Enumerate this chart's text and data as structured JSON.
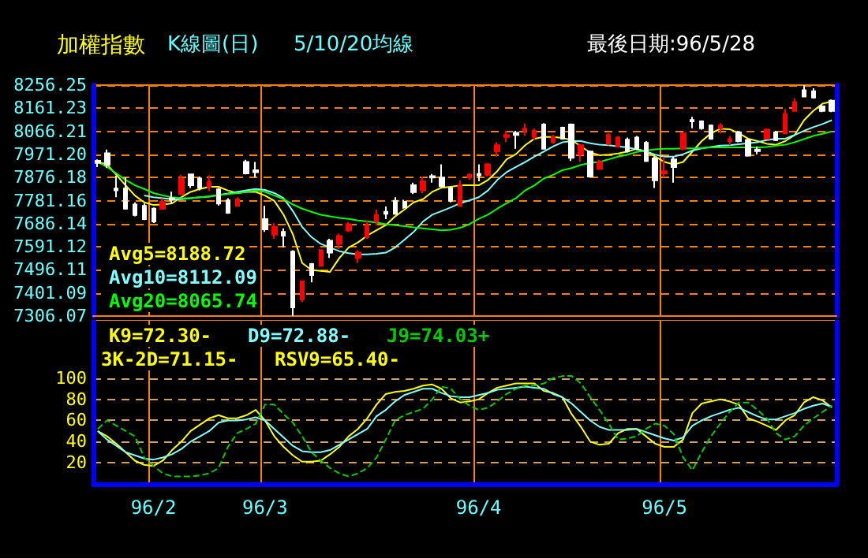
{
  "chart_data": [
    {
      "type": "candlestick",
      "title": "加權指數",
      "subtitle": "K線圖(日)",
      "annotations": [
        "5/10/20均線",
        "最後日期:96/5/28"
      ],
      "categories": [
        null,
        null,
        null,
        null,
        null,
        null,
        null,
        null,
        null,
        null,
        null,
        null,
        null,
        null,
        null,
        null,
        null,
        null,
        null,
        null,
        null,
        null,
        null,
        null,
        null,
        null,
        null,
        null,
        null,
        null,
        null,
        null,
        null,
        null,
        null,
        null,
        null,
        null,
        null,
        null,
        null,
        null,
        null,
        null,
        null,
        null,
        null,
        null,
        null,
        null,
        null,
        null,
        null,
        null,
        null,
        null,
        null,
        null,
        null,
        null,
        null,
        null,
        null,
        null,
        null,
        null,
        null,
        null,
        null,
        null,
        null,
        null,
        null,
        null,
        null,
        null,
        null,
        null,
        null,
        null
      ],
      "ohlc": [
        [
          7945,
          7951,
          7919,
          7936
        ],
        [
          7976,
          7991,
          7915,
          7929
        ],
        [
          7831,
          7883,
          7795,
          7823
        ],
        [
          7831,
          7876,
          7744,
          7748
        ],
        [
          7765,
          7774,
          7716,
          7722
        ],
        [
          7759,
          7769,
          7701,
          7705
        ],
        [
          7748,
          7753,
          7689,
          7695
        ],
        [
          7748,
          7791,
          7744,
          7776
        ],
        [
          7791,
          7818,
          7769,
          7784
        ],
        [
          7808,
          7887,
          7804,
          7872
        ],
        [
          7889,
          7891,
          7833,
          7844
        ],
        [
          7872,
          7880,
          7823,
          7833
        ],
        [
          7838,
          7885,
          7821,
          7859
        ],
        [
          7827,
          7833,
          7761,
          7769
        ],
        [
          7782,
          7791,
          7727,
          7731
        ],
        [
          7759,
          7795,
          7757,
          7786
        ],
        [
          7940,
          7949,
          7889,
          7893
        ],
        [
          7906,
          7940,
          7876,
          7898
        ],
        [
          7705,
          7759,
          7652,
          7663
        ],
        [
          7641,
          7688,
          7624,
          7673
        ],
        [
          7652,
          7667,
          7588,
          7637
        ],
        [
          7571,
          7577,
          7306.07,
          7342
        ],
        [
          7374,
          7453,
          7364,
          7449
        ],
        [
          7520,
          7524,
          7445,
          7475
        ],
        [
          7513,
          7582,
          7509,
          7577
        ],
        [
          7616,
          7624,
          7545,
          7567
        ],
        [
          7603,
          7646,
          7582,
          7635
        ],
        [
          7658,
          7693,
          7652,
          7684
        ],
        [
          7545,
          7577,
          7524,
          7567
        ],
        [
          7631,
          7701,
          7624,
          7680
        ],
        [
          7695,
          7744,
          7680,
          7722
        ],
        [
          7735,
          7757,
          7705,
          7727
        ],
        [
          7780,
          7795,
          7723,
          7727
        ],
        [
          7776,
          7784,
          7748,
          7753
        ],
        [
          7844,
          7855,
          7808,
          7816
        ],
        [
          7823,
          7880,
          7812,
          7861
        ],
        [
          7882,
          7891,
          7855,
          7876
        ],
        [
          7876,
          7930,
          7834,
          7840
        ],
        [
          7833,
          7840,
          7774,
          7780
        ],
        [
          7759,
          7865,
          7759,
          7844
        ],
        [
          7876,
          7893,
          7866,
          7887
        ],
        [
          7891,
          7930,
          7861,
          7885
        ],
        [
          7887,
          7934,
          7880,
          7930
        ],
        [
          7983,
          8021,
          7962,
          8009
        ],
        [
          8043,
          8068,
          8021,
          8051
        ],
        [
          8060,
          8068,
          7994,
          8051
        ],
        [
          8068,
          8098,
          8047,
          8077
        ],
        [
          8043,
          8079,
          8030,
          8068
        ],
        [
          8094,
          8100,
          7991,
          7994
        ],
        [
          8021,
          8051,
          8015,
          8043
        ],
        [
          8081,
          8085,
          8032,
          8036
        ],
        [
          8094,
          8098,
          7944,
          7957
        ],
        [
          7972,
          8015,
          7940,
          8009
        ],
        [
          7983,
          7987,
          7876,
          7880
        ],
        [
          7912,
          7949,
          7908,
          7940
        ],
        [
          8015,
          8058,
          8009,
          8051
        ],
        [
          8004,
          8047,
          8000,
          8041
        ],
        [
          8032,
          8041,
          7979,
          7983
        ],
        [
          8041,
          8047,
          7989,
          7994
        ],
        [
          8019,
          8026,
          7940,
          7944
        ],
        [
          7955,
          7962,
          7833,
          7865
        ],
        [
          7893,
          7962,
          7876,
          7902
        ],
        [
          7951,
          7962,
          7855,
          7919
        ],
        [
          7994,
          8062,
          7989,
          8058
        ],
        [
          8113,
          8126,
          8079,
          8107
        ],
        [
          8107,
          8111,
          8073,
          8079
        ],
        [
          8090,
          8094,
          8032,
          8036
        ],
        [
          8079,
          8100,
          8058,
          8090
        ],
        [
          8026,
          8047,
          8009,
          8034
        ],
        [
          8062,
          8068,
          8021,
          8026
        ],
        [
          8030,
          8036,
          7962,
          7966
        ],
        [
          7991,
          8004,
          7972,
          7985
        ],
        [
          8036,
          8079,
          8032,
          8073
        ],
        [
          8062,
          8068,
          8026,
          8030
        ],
        [
          8058,
          8158,
          8054,
          8137
        ],
        [
          8150,
          8201,
          8147,
          8186
        ],
        [
          8235,
          8256.25,
          8207,
          8209
        ],
        [
          8231,
          8243,
          8201,
          8205
        ],
        [
          8169,
          8175,
          8145,
          8150
        ],
        [
          8192,
          8197,
          8145,
          8150
        ]
      ],
      "colors": [
        "#ffffff",
        "#ffffff",
        "#ffffff",
        "#ffffff",
        "#ffffff",
        "#ffffff",
        "#ffffff",
        "#ff0000",
        "#ffffff",
        "#ff0000",
        "#ffffff",
        "#ffffff",
        "#ff0000",
        "#ffffff",
        "#ffffff",
        "#ff0000",
        "#ffffff",
        "#ffffff",
        "#ffffff",
        "#ff0000",
        "#ffffff",
        "#ffffff",
        "#ff0000",
        "#ffffff",
        "#ff0000",
        "#ffffff",
        "#ff0000",
        "#ff0000",
        "#ff0000",
        "#ff0000",
        "#ff0000",
        "#ffffff",
        "#ffffff",
        "#ffffff",
        "#ffffff",
        "#ff0000",
        "#ffffff",
        "#ffffff",
        "#ffffff",
        "#ff0000",
        "#ff0000",
        "#ffffff",
        "#ff0000",
        "#ff0000",
        "#ff0000",
        "#ffffff",
        "#ff0000",
        "#ff0000",
        "#ffffff",
        "#ff0000",
        "#ffffff",
        "#ffffff",
        "#ff0000",
        "#ffffff",
        "#ff0000",
        "#ff0000",
        "#ff0000",
        "#ffffff",
        "#ffffff",
        "#ffffff",
        "#ffffff",
        "#ff0000",
        "#ffffff",
        "#ff0000",
        "#ffffff",
        "#ffffff",
        "#ffffff",
        "#ff0000",
        "#ff0000",
        "#ffffff",
        "#ffffff",
        "#ffffff",
        "#ff0000",
        "#ffffff",
        "#ff0000",
        "#ff0000",
        "#ffffff",
        "#ffffff",
        "#ffffff",
        "#ffffff"
      ],
      "series": [
        {
          "name": "Avg5=8188.72",
          "type": "line",
          "color": "#ffff00",
          "values": [
            7940,
            7930,
            7887,
            7844,
            7802,
            7774,
            7763,
            7765,
            7770,
            7795,
            7817,
            7829,
            7838,
            7838,
            7823,
            7812,
            7817,
            7817,
            7802,
            7780,
            7723,
            7642,
            7524,
            7496,
            7492,
            7488,
            7545,
            7588,
            7609,
            7637,
            7659,
            7680,
            7716,
            7744,
            7774,
            7787,
            7817,
            7834,
            7838,
            7844,
            7844,
            7844,
            7866,
            7902,
            7951,
            7972,
            8009,
            8036,
            8043,
            8043,
            8039,
            8030,
            8004,
            7979,
            7968,
            7970,
            7975,
            7983,
            7994,
            7983,
            7962,
            7940,
            7930,
            7940,
            7983,
            8026,
            8058,
            8077,
            8075,
            8058,
            8036,
            8026,
            8015,
            8011,
            8026,
            8051,
            8111,
            8150,
            8180,
            8188.72
          ]
        },
        {
          "name": "Avg10=8112.09",
          "type": "line",
          "color": "#7fffff",
          "values": [
            null,
            null,
            null,
            null,
            null,
            7802,
            7795,
            7791,
            7787,
            7787,
            7791,
            7795,
            7797,
            7804,
            7810,
            7817,
            7823,
            7829,
            7825,
            7812,
            7791,
            7738,
            7673,
            7631,
            7603,
            7588,
            7573,
            7565,
            7560,
            7560,
            7562,
            7567,
            7588,
            7620,
            7652,
            7695,
            7723,
            7738,
            7753,
            7770,
            7782,
            7795,
            7823,
            7866,
            7898,
            7919,
            7940,
            7962,
            7983,
            8004,
            8021,
            8026,
            8026,
            8017,
            8011,
            8009,
            8004,
            8000,
            7992,
            7983,
            7970,
            7962,
            7962,
            7972,
            7987,
            7996,
            8002,
            8007,
            8009,
            8013,
            8017,
            8021,
            8030,
            8036,
            8036,
            8051,
            8068,
            8083,
            8096,
            8112.09
          ]
        },
        {
          "name": "Avg20=8065.74",
          "type": "line",
          "color": "#00ff00",
          "values": [
            7940,
            7919,
            7893,
            7866,
            7844,
            7829,
            7812,
            7802,
            7795,
            7791,
            7791,
            7795,
            7799,
            7804,
            7808,
            7812,
            7817,
            7823,
            7817,
            7802,
            7787,
            7765,
            7748,
            7735,
            7723,
            7716,
            7710,
            7706,
            7699,
            7695,
            7691,
            7684,
            7680,
            7676,
            7671,
            7667,
            7663,
            7659,
            7661,
            7669,
            7684,
            7706,
            7723,
            7748,
            7770,
            7791,
            7823,
            7844,
            7872,
            7887,
            7906,
            7915,
            7928,
            7936,
            7940,
            7951,
            7962,
            7970,
            7981,
            7987,
            7992,
            7994,
            7994,
            7996,
            7996,
            7998,
            8000,
            8000,
            8000,
            8000,
            8000,
            8000,
            8002,
            8007,
            8011,
            8021,
            8034,
            8047,
            8056,
            8065.74
          ]
        }
      ],
      "ylim": [
        7306.07,
        8256.25
      ],
      "yticks": [
        7306.07,
        7401.09,
        7496.11,
        7591.12,
        7686.14,
        7781.16,
        7876.18,
        {
          "value": 7971.2,
          "label": "7971.20"
        },
        8066.21,
        8161.23,
        8256.25
      ],
      "grid": true,
      "legend": "bottom left",
      "marker": "none",
      "tick_labels": "y"
    },
    {
      "type": "line",
      "annotations": [
        "3K-2D=71.15-",
        "RSV9=65.40-"
      ],
      "categories": [
        null,
        null,
        null,
        null,
        null,
        null,
        "96/2",
        null,
        null,
        null,
        null,
        null,
        null,
        null,
        null,
        null,
        null,
        null,
        "96/3",
        null,
        null,
        null,
        null,
        null,
        null,
        null,
        null,
        null,
        null,
        null,
        null,
        null,
        null,
        null,
        null,
        null,
        null,
        null,
        null,
        null,
        null,
        "96/4",
        null,
        null,
        null,
        null,
        null,
        null,
        null,
        null,
        null,
        null,
        null,
        null,
        null,
        null,
        null,
        null,
        null,
        null,
        null,
        "96/5",
        null,
        null,
        null,
        null,
        null,
        null,
        null,
        null,
        null,
        null,
        null,
        null,
        null,
        null,
        null,
        null,
        null,
        null
      ],
      "series": [
        {
          "name": "K9=72.30-",
          "color": "#ffff00",
          "values": [
            50,
            45,
            38,
            30,
            22,
            18,
            17,
            22,
            32,
            40,
            50,
            56,
            62,
            65,
            62,
            62,
            65,
            70,
            60,
            45,
            35,
            27,
            21,
            21,
            22,
            28,
            35,
            45,
            52,
            62,
            75,
            85,
            87,
            88,
            90,
            93,
            94,
            90,
            81,
            77,
            78,
            80,
            86,
            91,
            93,
            95,
            95,
            95,
            88,
            86,
            82,
            66,
            54,
            40,
            37,
            38,
            48,
            52,
            52,
            45,
            38,
            35,
            35,
            42,
            67,
            76,
            78,
            80,
            78,
            75,
            62,
            59,
            55,
            51,
            60,
            65,
            77,
            82,
            79,
            72.3
          ]
        },
        {
          "name": "D9=72.88-",
          "color": "#7fffff",
          "values": [
            50,
            42,
            36,
            30,
            27,
            24,
            23,
            25,
            28,
            33,
            40,
            45,
            50,
            58,
            60,
            60,
            61,
            63,
            60,
            52,
            44,
            36,
            31,
            30,
            30,
            32,
            37,
            42,
            47,
            52,
            64,
            70,
            78,
            84,
            87,
            90,
            90,
            86,
            83,
            82,
            82,
            84,
            86,
            89,
            90,
            91,
            92,
            91,
            90,
            85,
            82,
            76,
            68,
            60,
            54,
            51,
            51,
            51,
            52,
            49,
            46,
            43,
            41,
            44,
            55,
            60,
            64,
            67,
            70,
            72,
            68,
            64,
            61,
            61,
            64,
            67,
            71,
            74,
            76,
            72.88
          ]
        },
        {
          "name": "J9=74.03+",
          "color": "#00cc00",
          "line_style": "dashed",
          "values": [
            52,
            60,
            55,
            50,
            45,
            25,
            17,
            10,
            7,
            7,
            7,
            8,
            10,
            15,
            35,
            48,
            52,
            57,
            75,
            75,
            66,
            58,
            45,
            30,
            22,
            15,
            10,
            7,
            10,
            15,
            25,
            42,
            60,
            65,
            68,
            71,
            80,
            92,
            90,
            80,
            74,
            70,
            72,
            78,
            85,
            90,
            93,
            93,
            95,
            100,
            102,
            102,
            95,
            82,
            70,
            57,
            42,
            43,
            45,
            52,
            57,
            55,
            47,
            25,
            13,
            30,
            45,
            57,
            68,
            77,
            77,
            70,
            62,
            48,
            42,
            45,
            55,
            62,
            68,
            74.03
          ]
        }
      ],
      "ylim": [
        0,
        155
      ],
      "yticks": [
        20,
        40,
        60,
        80,
        100
      ],
      "grid": true,
      "legend": "top left",
      "marker": "none"
    }
  ]
}
